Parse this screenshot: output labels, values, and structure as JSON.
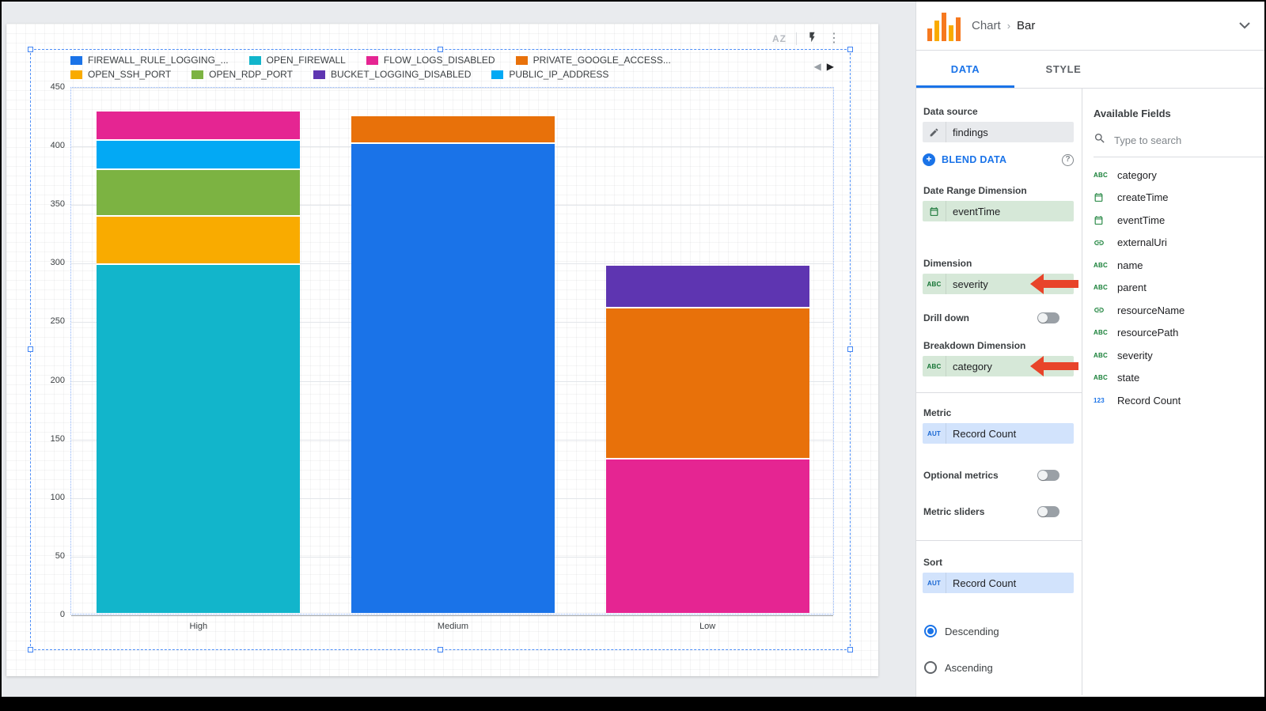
{
  "canvas": {
    "toolbar": {
      "sort_glyph": "AZ",
      "menu_glyph": "⋮"
    },
    "pager": {
      "prev": "◀",
      "next": "▶"
    }
  },
  "chart_data": {
    "type": "bar",
    "stacked": true,
    "orientation": "vertical",
    "title": "",
    "categories": [
      "High",
      "Medium",
      "Low"
    ],
    "ylim": [
      0,
      450
    ],
    "yticks": [
      0,
      50,
      100,
      150,
      200,
      250,
      300,
      350,
      400,
      450
    ],
    "grid": true,
    "legend_position": "top",
    "legend": [
      {
        "label": "FIREWALL_RULE_LOGGING_...",
        "color": "#1a73e8"
      },
      {
        "label": "OPEN_FIREWALL",
        "color": "#12b5cb"
      },
      {
        "label": "FLOW_LOGS_DISABLED",
        "color": "#e52592"
      },
      {
        "label": "PRIVATE_GOOGLE_ACCESS...",
        "color": "#e8710a"
      },
      {
        "label": "OPEN_SSH_PORT",
        "color": "#f9ab00"
      },
      {
        "label": "OPEN_RDP_PORT",
        "color": "#7cb342"
      },
      {
        "label": "BUCKET_LOGGING_DISABLED",
        "color": "#5e35b1"
      },
      {
        "label": "PUBLIC_IP_ADDRESS",
        "color": "#03a9f4"
      }
    ],
    "bars": [
      {
        "category": "High",
        "total": 428,
        "segments": [
          {
            "series": "OPEN_FIREWALL",
            "value": 297
          },
          {
            "series": "OPEN_SSH_PORT",
            "value": 41
          },
          {
            "series": "OPEN_RDP_PORT",
            "value": 40
          },
          {
            "series": "PUBLIC_IP_ADDRESS",
            "value": 25
          },
          {
            "series": "FLOW_LOGS_DISABLED",
            "value": 25
          }
        ]
      },
      {
        "category": "Medium",
        "total": 424,
        "segments": [
          {
            "series": "FIREWALL_RULE_LOGGING_...",
            "value": 400
          },
          {
            "series": "PRIVATE_GOOGLE_ACCESS...",
            "value": 24
          }
        ]
      },
      {
        "category": "Low",
        "total": 296,
        "segments": [
          {
            "series": "FLOW_LOGS_DISABLED",
            "value": 131
          },
          {
            "series": "PRIVATE_GOOGLE_ACCESS...",
            "value": 129
          },
          {
            "series": "BUCKET_LOGGING_DISABLED",
            "value": 36
          }
        ]
      }
    ]
  },
  "panel": {
    "header": {
      "breadcrumb_parent": "Chart",
      "breadcrumb_child": "Bar"
    },
    "tabs": {
      "data": "DATA",
      "style": "STYLE"
    },
    "setup": {
      "data_source_label": "Data source",
      "data_source_value": "findings",
      "blend_label": "BLEND DATA",
      "date_range_label": "Date Range Dimension",
      "date_range_value": "eventTime",
      "dimension_label": "Dimension",
      "dimension_value": "severity",
      "dimension_type": "ABC",
      "drill_down_label": "Drill down",
      "breakdown_label": "Breakdown Dimension",
      "breakdown_value": "category",
      "breakdown_type": "ABC",
      "metric_label": "Metric",
      "metric_value": "Record Count",
      "metric_type": "AUT",
      "optional_metrics_label": "Optional metrics",
      "metric_sliders_label": "Metric sliders",
      "sort_label": "Sort",
      "sort_value": "Record Count",
      "sort_type": "AUT",
      "sort_descending_label": "Descending",
      "sort_ascending_label": "Ascending"
    },
    "fields": {
      "title": "Available Fields",
      "search_placeholder": "Type to search",
      "items": [
        {
          "name": "category",
          "type": "text"
        },
        {
          "name": "createTime",
          "type": "date"
        },
        {
          "name": "eventTime",
          "type": "date"
        },
        {
          "name": "externalUri",
          "type": "url"
        },
        {
          "name": "name",
          "type": "text"
        },
        {
          "name": "parent",
          "type": "text"
        },
        {
          "name": "resourceName",
          "type": "url"
        },
        {
          "name": "resourcePath",
          "type": "text"
        },
        {
          "name": "severity",
          "type": "text"
        },
        {
          "name": "state",
          "type": "text"
        },
        {
          "name": "Record Count",
          "type": "number"
        }
      ]
    }
  },
  "colors": {
    "accent": "#1a73e8",
    "annotation_arrow": "#e8442a",
    "dimension_chip_bg": "#d6e8d8",
    "dimension_chip_icon": "#137333",
    "metric_chip_bg": "#d2e3fc",
    "metric_chip_icon": "#1967d2",
    "field_icon_dimension": "#188038",
    "field_icon_metric": "#1a73e8"
  }
}
